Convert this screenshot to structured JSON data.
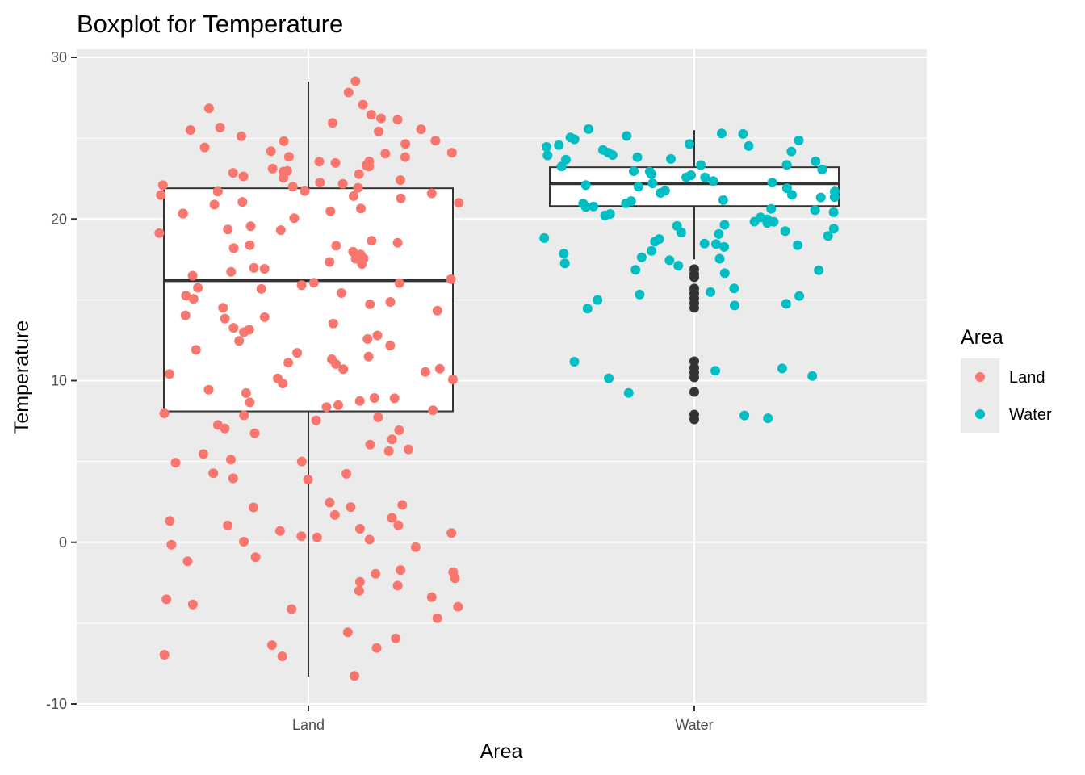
{
  "chart_data": {
    "type": "boxplot",
    "title": "Boxplot for Temperature",
    "xlabel": "Area",
    "ylabel": "Temperature",
    "ylim": [
      -10,
      30
    ],
    "yticks": [
      -10,
      0,
      10,
      20,
      30
    ],
    "categories": [
      "Land",
      "Water"
    ],
    "grid": true,
    "legend": {
      "title": "Area",
      "position": "right",
      "entries": [
        {
          "label": "Land",
          "color": "#F8766D"
        },
        {
          "label": "Water",
          "color": "#00BFC4"
        }
      ]
    },
    "boxes": [
      {
        "category": "Land",
        "min": -8.3,
        "q1": 8.1,
        "median": 16.2,
        "q3": 21.9,
        "max": 28.5,
        "outliers": []
      },
      {
        "category": "Water",
        "min": 17.5,
        "q1": 20.8,
        "median": 22.2,
        "q3": 23.2,
        "max": 25.5,
        "outliers": [
          16.9,
          16.6,
          16.4,
          15.7,
          15.4,
          15.1,
          14.8,
          14.5,
          11.2,
          10.8,
          10.5,
          10.2,
          9.3,
          7.9,
          7.6
        ]
      }
    ],
    "series": [
      {
        "name": "Land",
        "color": "#F8766D",
        "values": [
          28.5,
          27.9,
          27.1,
          26.9,
          26.5,
          26.2,
          26.1,
          25.9,
          25.7,
          25.6,
          25.5,
          25.4,
          25.1,
          24.9,
          24.8,
          24.6,
          24.4,
          24.2,
          24.1,
          24.0,
          23.9,
          23.8,
          23.6,
          23.5,
          23.4,
          23.3,
          23.2,
          23.1,
          23.0,
          22.9,
          22.8,
          22.7,
          22.6,
          22.5,
          22.4,
          22.3,
          22.2,
          22.1,
          22.0,
          21.9,
          21.8,
          21.7,
          21.6,
          21.5,
          21.4,
          21.3,
          21.1,
          21.0,
          20.9,
          20.7,
          20.5,
          20.4,
          20.3,
          20.1,
          19.6,
          19.4,
          19.3,
          19.1,
          18.7,
          18.6,
          18.4,
          18.3,
          18.2,
          18.0,
          17.8,
          17.6,
          17.5,
          17.3,
          17.2,
          17.0,
          16.9,
          16.7,
          16.5,
          16.3,
          16.1,
          16.0,
          15.9,
          15.8,
          15.6,
          15.4,
          15.2,
          15.0,
          14.9,
          14.7,
          14.5,
          14.3,
          14.1,
          14.0,
          13.8,
          13.6,
          13.3,
          13.2,
          13.0,
          12.8,
          12.6,
          12.4,
          12.1,
          11.9,
          11.7,
          11.5,
          11.3,
          11.1,
          11.0,
          10.8,
          10.7,
          10.5,
          10.4,
          10.2,
          10.0,
          9.8,
          9.5,
          9.3,
          9.0,
          8.9,
          8.8,
          8.7,
          8.5,
          8.3,
          8.2,
          8.0,
          7.9,
          7.8,
          7.6,
          7.2,
          7.1,
          6.9,
          6.8,
          6.4,
          6.0,
          5.8,
          5.6,
          5.4,
          5.1,
          5.0,
          4.9,
          4.3,
          4.2,
          4.0,
          3.9,
          2.4,
          2.3,
          2.2,
          2.1,
          1.7,
          1.5,
          1.4,
          1.1,
          1.0,
          0.9,
          0.7,
          0.6,
          0.4,
          0.3,
          0.2,
          0.0,
          -0.2,
          -0.3,
          -1.0,
          -1.1,
          -1.7,
          -1.8,
          -1.9,
          -2.2,
          -2.5,
          -2.7,
          -3.0,
          -3.4,
          -3.5,
          -3.9,
          -4.0,
          -4.2,
          -4.7,
          -5.5,
          -5.9,
          -6.4,
          -6.6,
          -6.9,
          -7.0,
          -8.3
        ]
      },
      {
        "name": "Water",
        "color": "#00BFC4",
        "values": [
          25.5,
          25.3,
          25.2,
          25.1,
          25.0,
          24.9,
          24.8,
          24.7,
          24.6,
          24.5,
          24.4,
          24.3,
          24.2,
          24.1,
          24.0,
          23.9,
          23.8,
          23.7,
          23.6,
          23.5,
          23.4,
          23.3,
          23.2,
          23.1,
          23.0,
          22.9,
          22.8,
          22.7,
          22.6,
          22.5,
          22.4,
          22.3,
          22.2,
          22.1,
          22.0,
          21.9,
          21.8,
          21.7,
          21.6,
          21.5,
          21.4,
          21.3,
          21.2,
          21.1,
          21.0,
          20.9,
          20.8,
          20.7,
          20.6,
          20.5,
          20.4,
          20.3,
          20.2,
          20.1,
          20.0,
          19.9,
          19.8,
          19.7,
          19.6,
          19.5,
          19.4,
          19.3,
          19.2,
          19.0,
          18.9,
          18.8,
          18.7,
          18.6,
          18.5,
          18.4,
          18.3,
          18.2,
          18.0,
          17.8,
          17.7,
          17.6,
          17.5,
          17.3,
          17.1,
          16.9,
          16.8,
          16.6,
          15.7,
          15.4,
          15.3,
          15.2,
          15.0,
          14.8,
          14.7,
          14.5,
          11.2,
          10.7,
          10.6,
          10.3,
          10.2,
          9.3,
          7.9,
          7.6
        ]
      }
    ]
  }
}
